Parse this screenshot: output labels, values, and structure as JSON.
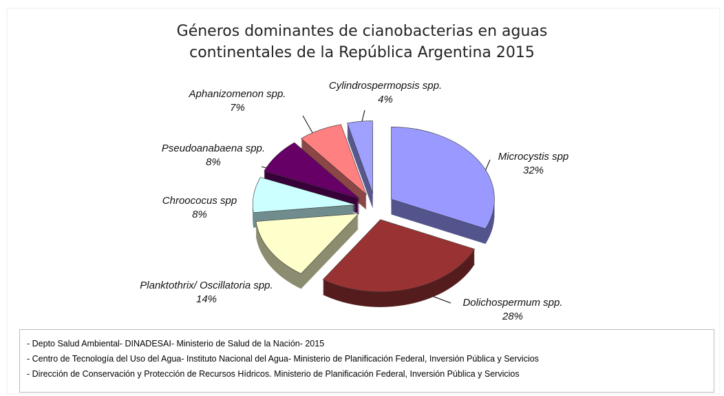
{
  "chart_data": {
    "type": "pie",
    "title": "Géneros dominantes de cianobacterias en aguas continentales de la República Argentina 2015",
    "categories": [
      "Microcystis spp",
      "Dolichospermum spp.",
      "Planktothrix/ Oscillatoria spp.",
      "Chroococus spp",
      "Pseudoanabaena spp.",
      "Aphanizomenon spp.",
      "Cylindrospermopsis spp."
    ],
    "values": [
      32,
      28,
      14,
      8,
      8,
      7,
      4
    ],
    "value_labels": [
      "32%",
      "28%",
      "14%",
      "8%",
      "8%",
      "7%",
      "4%"
    ],
    "colors": [
      "#9999ff",
      "#993333",
      "#ffffcc",
      "#ccffff",
      "#660066",
      "#ff8080",
      "#a0a0ff"
    ]
  },
  "notes": [
    "- Depto Salud Ambiental- DINADESAI- Ministerio de Salud de la Nación- 2015",
    "- Centro de Tecnología del Uso del Agua- Instituto Nacional del Agua- Ministerio de Planificación Federal, Inversión Pública y Servicios",
    "- Dirección de  Conservación y Protección de Recursos Hídricos. Ministerio de Planificación Federal, Inversión Pública y Servicios"
  ]
}
